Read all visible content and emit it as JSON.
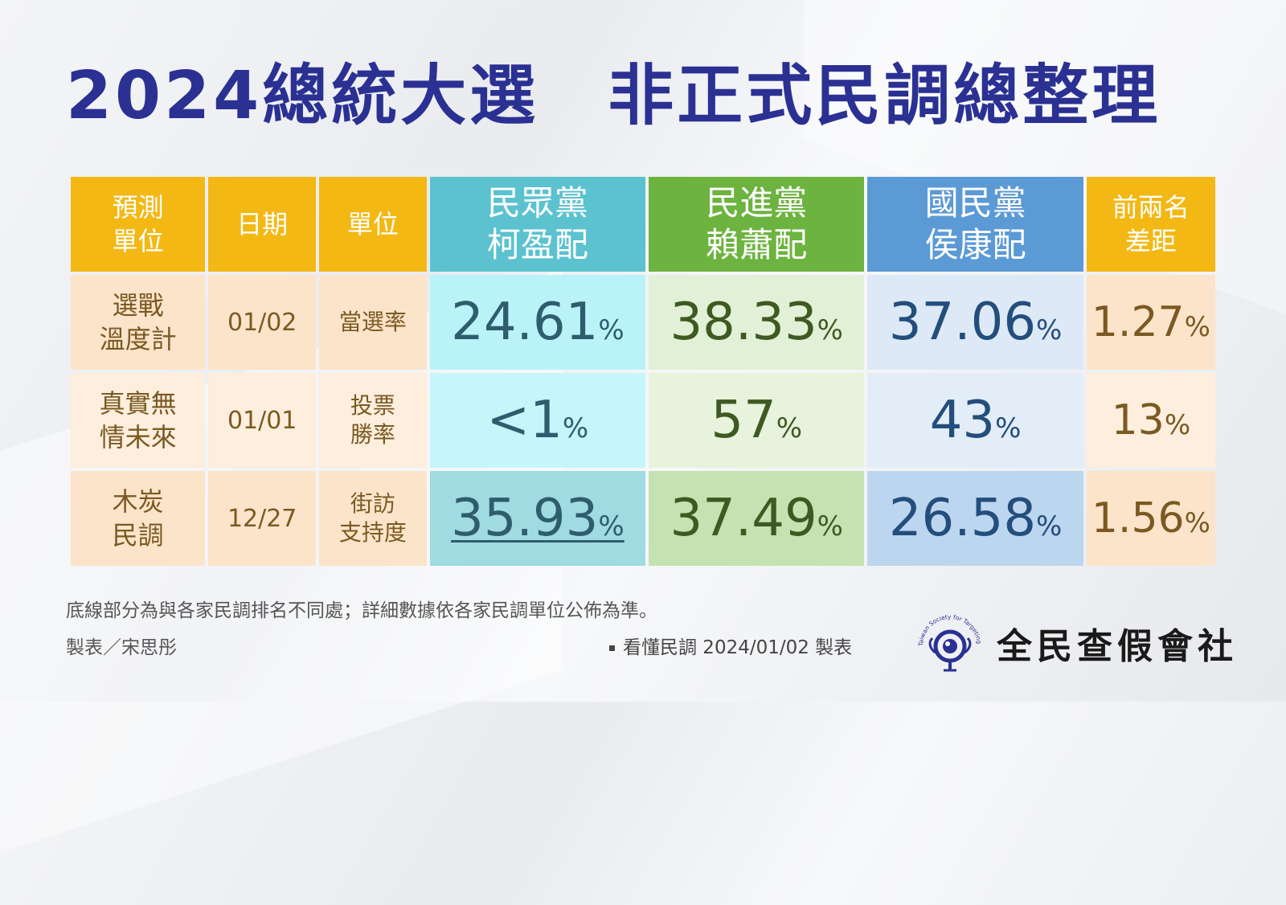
{
  "title": "2024總統大選　非正式民調總整理",
  "header": {
    "col_org_line1": "預測",
    "col_org_line2": "單位",
    "col_date": "日期",
    "col_unit": "單位",
    "party1_name": "民眾黨",
    "party1_ticket": "柯盈配",
    "party2_name": "民進黨",
    "party2_ticket": "賴蕭配",
    "party3_name": "國民黨",
    "party3_ticket": "侯康配",
    "gap_line1": "前兩名",
    "gap_line2": "差距"
  },
  "rows": [
    {
      "org_line1": "選戰",
      "org_line2": "溫度計",
      "date": "01/02",
      "unit_line1": "當選率",
      "unit_line2": "",
      "ko": "24.61",
      "lai": "38.33",
      "hou": "37.06",
      "gap": "1.27",
      "pct": "%"
    },
    {
      "org_line1": "真實無",
      "org_line2": "情未來",
      "date": "01/01",
      "unit_line1": "投票",
      "unit_line2": "勝率",
      "ko": "<1",
      "lai": "57",
      "hou": "43",
      "gap": "13",
      "pct": "%"
    },
    {
      "org_line1": "木炭",
      "org_line2": "民調",
      "date": "12/27",
      "unit_line1": "街訪",
      "unit_line2": "支持度",
      "ko": "35.93",
      "lai": "37.49",
      "hou": "26.58",
      "gap": "1.56",
      "pct": "%"
    }
  ],
  "colors": {
    "title": "#2b3192",
    "header_gold": "#f3b814",
    "header_teal": "#5cc2cf",
    "header_green": "#6db33f",
    "header_blue": "#5b9ad5"
  },
  "footer": {
    "note": "底線部分為與各家民調排名不同處；詳細數據依各家民調單位公佈為準。",
    "credit": "製表／宋思彤",
    "source": "看懂民調 2024/01/02 製表",
    "org_name": "全民查假會社",
    "logo_text": "Taiwan Society for Targeting Misinformation",
    "logo_icon": "magnifier-eye-icon"
  }
}
